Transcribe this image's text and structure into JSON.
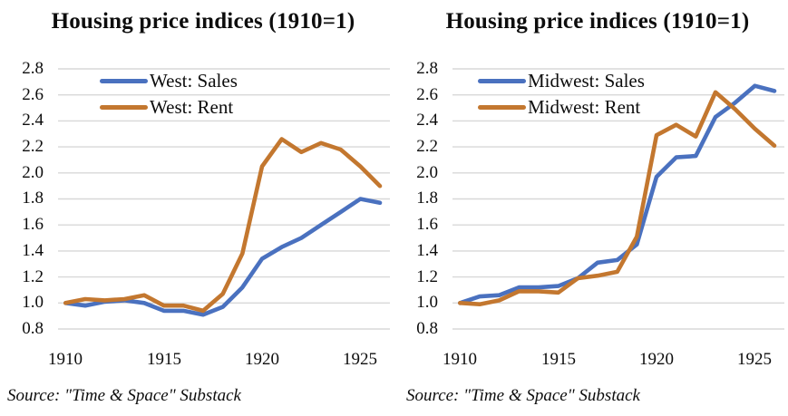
{
  "figure": {
    "source_note": "Source: \"Time & Space\" Substack"
  },
  "colors": {
    "sales_line": "#4A71BF",
    "rent_line": "#C3772F",
    "gridline": "#D8D8D8",
    "text": "#0D0D0D",
    "background": "#FFFFFF"
  },
  "chart_data": [
    {
      "type": "line",
      "title": "Housing price indices (1910=1)",
      "x": [
        1910,
        1911,
        1912,
        1913,
        1914,
        1915,
        1916,
        1917,
        1918,
        1919,
        1920,
        1921,
        1922,
        1923,
        1924,
        1925,
        1926
      ],
      "xticks": [
        "1910",
        "1915",
        "1920",
        "1925"
      ],
      "yticks": [
        "0.8",
        "1.0",
        "1.2",
        "1.4",
        "1.6",
        "1.8",
        "2.0",
        "2.2",
        "2.4",
        "2.6",
        "2.8"
      ],
      "ylim": [
        0.8,
        2.8
      ],
      "grid": "horizontal-only",
      "legend_position": "top-left-inside",
      "series": [
        {
          "name": "West: Sales",
          "color_key": "sales_line",
          "values": [
            1.0,
            0.98,
            1.01,
            1.02,
            1.0,
            0.94,
            0.94,
            0.91,
            0.97,
            1.12,
            1.34,
            1.43,
            1.5,
            1.6,
            1.7,
            1.8,
            1.77
          ]
        },
        {
          "name": "West: Rent",
          "color_key": "rent_line",
          "values": [
            1.0,
            1.03,
            1.02,
            1.03,
            1.06,
            0.98,
            0.98,
            0.94,
            1.07,
            1.38,
            2.05,
            2.26,
            2.16,
            2.23,
            2.18,
            2.05,
            1.9
          ]
        }
      ]
    },
    {
      "type": "line",
      "title": "Housing price indices (1910=1)",
      "x": [
        1910,
        1911,
        1912,
        1913,
        1914,
        1915,
        1916,
        1917,
        1918,
        1919,
        1920,
        1921,
        1922,
        1923,
        1924,
        1925,
        1926
      ],
      "xticks": [
        "1910",
        "1915",
        "1920",
        "1925"
      ],
      "yticks": [
        "0.8",
        "1.0",
        "1.2",
        "1.4",
        "1.6",
        "1.8",
        "2.0",
        "2.2",
        "2.4",
        "2.6",
        "2.8"
      ],
      "ylim": [
        0.8,
        2.8
      ],
      "grid": "horizontal-only",
      "legend_position": "top-left-inside",
      "series": [
        {
          "name": "Midwest: Sales",
          "color_key": "sales_line",
          "values": [
            1.0,
            1.05,
            1.06,
            1.12,
            1.12,
            1.13,
            1.19,
            1.31,
            1.33,
            1.45,
            1.97,
            2.12,
            2.13,
            2.43,
            2.54,
            2.67,
            2.63
          ]
        },
        {
          "name": "Midwest: Rent",
          "color_key": "rent_line",
          "values": [
            1.0,
            0.99,
            1.02,
            1.09,
            1.09,
            1.08,
            1.19,
            1.21,
            1.24,
            1.51,
            2.29,
            2.37,
            2.28,
            2.62,
            2.49,
            2.34,
            2.21
          ]
        }
      ]
    }
  ]
}
